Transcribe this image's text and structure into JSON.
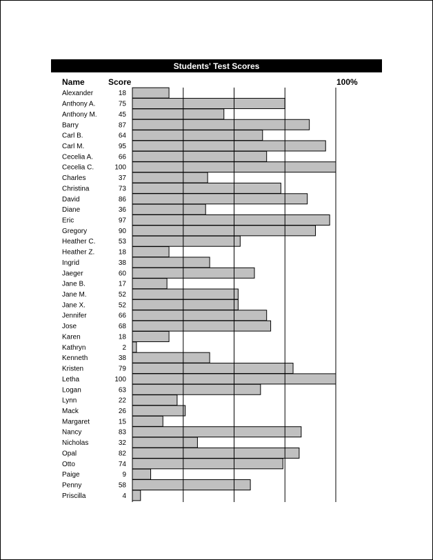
{
  "chart_data": {
    "type": "bar",
    "title": "Students' Test Scores",
    "column_headers": {
      "name": "Name",
      "score": "Score",
      "max_label": "100%"
    },
    "xlim": [
      0,
      100
    ],
    "gridlines": [
      25,
      50,
      75,
      100
    ],
    "bar_color": "#c0c0c0",
    "categories": [
      "Alexander",
      "Anthony A.",
      "Anthony M.",
      "Barry",
      "Carl B.",
      "Carl M.",
      "Cecelia A.",
      "Cecelia C.",
      "Charles",
      "Christina",
      "David",
      "Diane",
      "Eric",
      "Gregory",
      "Heather C.",
      "Heather Z.",
      "Ingrid",
      "Jaeger",
      "Jane B.",
      "Jane M.",
      "Jane X.",
      "Jennifer",
      "Jose",
      "Karen",
      "Kathryn",
      "Kenneth",
      "Kristen",
      "Letha",
      "Logan",
      "Lynn",
      "Mack",
      "Margaret",
      "Nancy",
      "Nicholas",
      "Opal",
      "Otto",
      "Paige",
      "Penny",
      "Priscilla"
    ],
    "values": [
      18,
      75,
      45,
      87,
      64,
      95,
      66,
      100,
      37,
      73,
      86,
      36,
      97,
      90,
      53,
      18,
      38,
      60,
      17,
      52,
      52,
      66,
      68,
      18,
      2,
      38,
      79,
      100,
      63,
      22,
      26,
      15,
      83,
      32,
      82,
      74,
      9,
      58,
      4
    ]
  }
}
